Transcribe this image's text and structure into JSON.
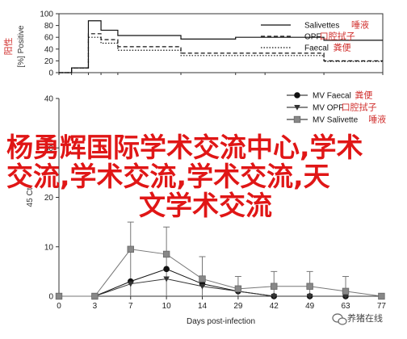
{
  "chart_data": [
    {
      "type": "line",
      "step": true,
      "ylabel": "[%] Positive",
      "ylabel_cn": "阳性",
      "ylim": [
        0,
        100
      ],
      "yticks": [
        0,
        20,
        40,
        60,
        80,
        100
      ],
      "xlim": [
        0,
        77
      ],
      "x": [
        0,
        3,
        7,
        10,
        14,
        29,
        42,
        49,
        63,
        77
      ],
      "series": [
        {
          "name": "Salivettes",
          "name_cn": "唾液",
          "style": "solid",
          "values": [
            0,
            8,
            88,
            72,
            63,
            57,
            60,
            60,
            55,
            55
          ]
        },
        {
          "name": "OPF",
          "name_cn": "口腔拭子",
          "style": "dashed",
          "values": [
            0,
            8,
            66,
            56,
            44,
            33,
            33,
            33,
            20,
            20
          ]
        },
        {
          "name": "Faecal",
          "name_cn": "粪便",
          "style": "dotted",
          "values": [
            0,
            8,
            60,
            50,
            38,
            29,
            29,
            29,
            19,
            19
          ]
        }
      ]
    },
    {
      "type": "line",
      "xlabel": "Days post-infection",
      "ylabel": "45 Ct",
      "ylim": [
        0,
        40
      ],
      "yticks": [
        0,
        10,
        20,
        30,
        40
      ],
      "xticks": [
        0,
        3,
        7,
        10,
        14,
        29,
        42,
        49,
        63,
        77
      ],
      "legend_position": "top-right",
      "series": [
        {
          "name": "MV Faecal",
          "name_cn": "粪便",
          "marker": "circle",
          "x": [
            0,
            3,
            7,
            10,
            14,
            29,
            42,
            49,
            63,
            77
          ],
          "values": [
            0,
            0,
            3,
            5.5,
            2.5,
            1,
            0,
            0,
            0,
            0
          ]
        },
        {
          "name": "MV OPF",
          "name_cn": "口腔拭子",
          "marker": "triangle-down",
          "x": [
            0,
            3,
            7,
            10,
            14,
            29,
            42,
            49,
            63,
            77
          ],
          "values": [
            0,
            0,
            2.5,
            3.5,
            2,
            1,
            0,
            0,
            0,
            0
          ]
        },
        {
          "name": "MV Salivette",
          "name_cn": "唾液",
          "marker": "square",
          "x": [
            0,
            3,
            7,
            10,
            14,
            29,
            42,
            49,
            63,
            77
          ],
          "values": [
            0,
            0,
            9.5,
            8.5,
            3.5,
            1.5,
            2,
            2,
            1,
            0
          ]
        }
      ],
      "error_bars": [
        {
          "x": 7,
          "low": 0,
          "high": 15
        },
        {
          "x": 10,
          "low": 0,
          "high": 14
        },
        {
          "x": 14,
          "low": 0,
          "high": 8
        },
        {
          "x": 29,
          "low": 0,
          "high": 4
        },
        {
          "x": 42,
          "low": 0,
          "high": 5
        },
        {
          "x": 49,
          "low": 0,
          "high": 5
        },
        {
          "x": 63,
          "low": 0,
          "high": 4
        }
      ]
    }
  ],
  "overlay": {
    "color": "#e01616",
    "lines": [
      "杨勇辉国际学术交流中心,学术",
      "交流,学术交流,学术交流,天",
      "文学术交流"
    ]
  },
  "watermark": {
    "text": "养猪在线",
    "icon": "wechat-icon"
  }
}
